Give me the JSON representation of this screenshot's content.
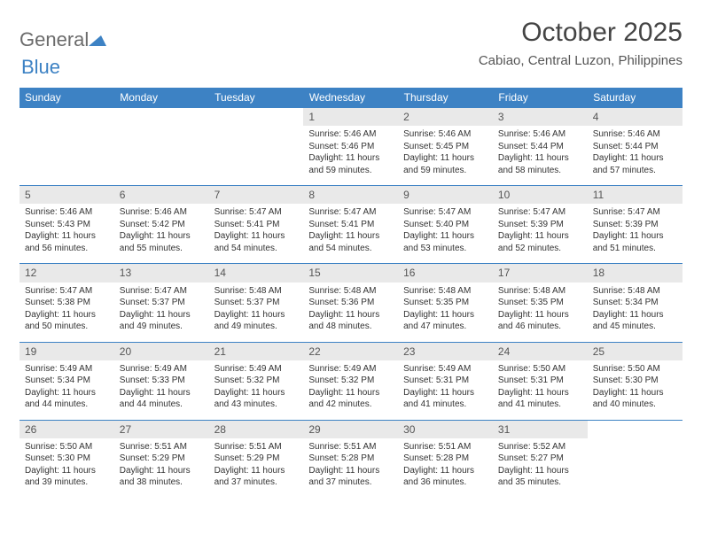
{
  "logo": {
    "word1": "General",
    "word2": "Blue"
  },
  "title": "October 2025",
  "location": "Cabiao, Central Luzon, Philippines",
  "colors": {
    "header_bg": "#3d82c4",
    "header_text": "#ffffff",
    "daynum_bg": "#e9e9e9",
    "border": "#3d82c4",
    "logo_gray": "#6b6b6b",
    "logo_blue": "#3d82c4",
    "text": "#333333",
    "bg": "#ffffff"
  },
  "weekdays": [
    "Sunday",
    "Monday",
    "Tuesday",
    "Wednesday",
    "Thursday",
    "Friday",
    "Saturday"
  ],
  "weeks": [
    [
      null,
      null,
      null,
      {
        "d": "1",
        "sr": "5:46 AM",
        "ss": "5:46 PM",
        "dl": "11 hours and 59 minutes."
      },
      {
        "d": "2",
        "sr": "5:46 AM",
        "ss": "5:45 PM",
        "dl": "11 hours and 59 minutes."
      },
      {
        "d": "3",
        "sr": "5:46 AM",
        "ss": "5:44 PM",
        "dl": "11 hours and 58 minutes."
      },
      {
        "d": "4",
        "sr": "5:46 AM",
        "ss": "5:44 PM",
        "dl": "11 hours and 57 minutes."
      }
    ],
    [
      {
        "d": "5",
        "sr": "5:46 AM",
        "ss": "5:43 PM",
        "dl": "11 hours and 56 minutes."
      },
      {
        "d": "6",
        "sr": "5:46 AM",
        "ss": "5:42 PM",
        "dl": "11 hours and 55 minutes."
      },
      {
        "d": "7",
        "sr": "5:47 AM",
        "ss": "5:41 PM",
        "dl": "11 hours and 54 minutes."
      },
      {
        "d": "8",
        "sr": "5:47 AM",
        "ss": "5:41 PM",
        "dl": "11 hours and 54 minutes."
      },
      {
        "d": "9",
        "sr": "5:47 AM",
        "ss": "5:40 PM",
        "dl": "11 hours and 53 minutes."
      },
      {
        "d": "10",
        "sr": "5:47 AM",
        "ss": "5:39 PM",
        "dl": "11 hours and 52 minutes."
      },
      {
        "d": "11",
        "sr": "5:47 AM",
        "ss": "5:39 PM",
        "dl": "11 hours and 51 minutes."
      }
    ],
    [
      {
        "d": "12",
        "sr": "5:47 AM",
        "ss": "5:38 PM",
        "dl": "11 hours and 50 minutes."
      },
      {
        "d": "13",
        "sr": "5:47 AM",
        "ss": "5:37 PM",
        "dl": "11 hours and 49 minutes."
      },
      {
        "d": "14",
        "sr": "5:48 AM",
        "ss": "5:37 PM",
        "dl": "11 hours and 49 minutes."
      },
      {
        "d": "15",
        "sr": "5:48 AM",
        "ss": "5:36 PM",
        "dl": "11 hours and 48 minutes."
      },
      {
        "d": "16",
        "sr": "5:48 AM",
        "ss": "5:35 PM",
        "dl": "11 hours and 47 minutes."
      },
      {
        "d": "17",
        "sr": "5:48 AM",
        "ss": "5:35 PM",
        "dl": "11 hours and 46 minutes."
      },
      {
        "d": "18",
        "sr": "5:48 AM",
        "ss": "5:34 PM",
        "dl": "11 hours and 45 minutes."
      }
    ],
    [
      {
        "d": "19",
        "sr": "5:49 AM",
        "ss": "5:34 PM",
        "dl": "11 hours and 44 minutes."
      },
      {
        "d": "20",
        "sr": "5:49 AM",
        "ss": "5:33 PM",
        "dl": "11 hours and 44 minutes."
      },
      {
        "d": "21",
        "sr": "5:49 AM",
        "ss": "5:32 PM",
        "dl": "11 hours and 43 minutes."
      },
      {
        "d": "22",
        "sr": "5:49 AM",
        "ss": "5:32 PM",
        "dl": "11 hours and 42 minutes."
      },
      {
        "d": "23",
        "sr": "5:49 AM",
        "ss": "5:31 PM",
        "dl": "11 hours and 41 minutes."
      },
      {
        "d": "24",
        "sr": "5:50 AM",
        "ss": "5:31 PM",
        "dl": "11 hours and 41 minutes."
      },
      {
        "d": "25",
        "sr": "5:50 AM",
        "ss": "5:30 PM",
        "dl": "11 hours and 40 minutes."
      }
    ],
    [
      {
        "d": "26",
        "sr": "5:50 AM",
        "ss": "5:30 PM",
        "dl": "11 hours and 39 minutes."
      },
      {
        "d": "27",
        "sr": "5:51 AM",
        "ss": "5:29 PM",
        "dl": "11 hours and 38 minutes."
      },
      {
        "d": "28",
        "sr": "5:51 AM",
        "ss": "5:29 PM",
        "dl": "11 hours and 37 minutes."
      },
      {
        "d": "29",
        "sr": "5:51 AM",
        "ss": "5:28 PM",
        "dl": "11 hours and 37 minutes."
      },
      {
        "d": "30",
        "sr": "5:51 AM",
        "ss": "5:28 PM",
        "dl": "11 hours and 36 minutes."
      },
      {
        "d": "31",
        "sr": "5:52 AM",
        "ss": "5:27 PM",
        "dl": "11 hours and 35 minutes."
      },
      null
    ]
  ],
  "labels": {
    "sunrise": "Sunrise:",
    "sunset": "Sunset:",
    "daylight": "Daylight:"
  }
}
